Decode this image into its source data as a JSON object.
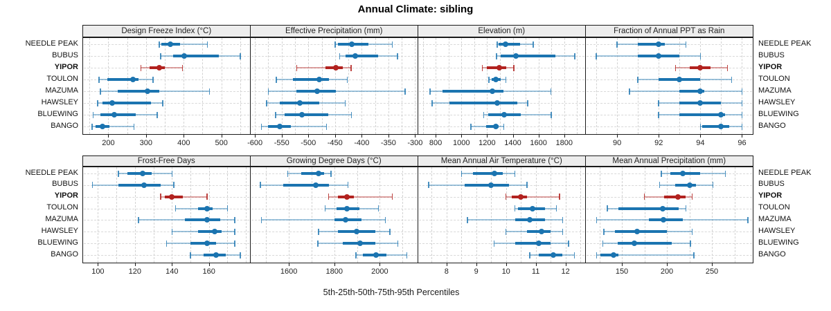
{
  "title": "Annual Climate: sibling",
  "axis_caption": "5th-25th-50th-75th-95th Percentiles",
  "colors": {
    "series": "#1b74b0",
    "series_light": "rgba(27,116,176,0.42)",
    "series_cap": "rgba(27,116,176,0.80)",
    "highlight": "#b2221f",
    "highlight_light": "rgba(178,34,31,0.42)",
    "highlight_cap": "rgba(178,34,31,0.85)",
    "grid": "#d2d2d2",
    "strip_bg": "#ededed",
    "border": "#1a1a1a"
  },
  "chart_data": {
    "type": "dotplot-intervals",
    "percentiles": [
      "5th",
      "25th",
      "50th",
      "75th",
      "95th"
    ],
    "sites": [
      "NEEDLE PEAK",
      "BUBUS",
      "YIPOR",
      "TOULON",
      "MAZUMA",
      "HAWSLEY",
      "BLUEWING",
      "BANGO"
    ],
    "highlight_site": "YIPOR",
    "legend": "none",
    "grid": "dashed, vertical at half-tick steps and horizontal per site row",
    "panels": [
      {
        "title": "Design Freeze Index (°C)",
        "row": 0,
        "col": 0,
        "xlim": [
          133,
          575
        ],
        "ticks": [
          200,
          300,
          400,
          500
        ],
        "values": [
          [
            335,
            340,
            365,
            390,
            463
          ],
          [
            339,
            371,
            402,
            493,
            550
          ],
          [
            286,
            310,
            335,
            350,
            397
          ],
          [
            175,
            198,
            265,
            280,
            319
          ],
          [
            179,
            224,
            304,
            335,
            468
          ],
          [
            172,
            185,
            211,
            313,
            344
          ],
          [
            160,
            179,
            216,
            273,
            330
          ],
          [
            157,
            166,
            185,
            203,
            268
          ]
        ]
      },
      {
        "title": "Effective Precipitation (mm)",
        "row": 0,
        "col": 1,
        "xlim": [
          -608,
          -296
        ],
        "ticks": [
          -600,
          -550,
          -500,
          -450,
          -400,
          -350,
          -300
        ],
        "values": [
          [
            -450,
            -444,
            -419,
            -388,
            -343
          ],
          [
            -441,
            -430,
            -412,
            -369,
            -333
          ],
          [
            -522,
            -468,
            -448,
            -436,
            -420
          ],
          [
            -560,
            -529,
            -479,
            -461,
            -427
          ],
          [
            -575,
            -522,
            -484,
            -448,
            -319
          ],
          [
            -578,
            -553,
            -516,
            -480,
            -431
          ],
          [
            -561,
            -545,
            -512,
            -463,
            -419
          ],
          [
            -588,
            -575,
            -554,
            -533,
            -466
          ]
        ]
      },
      {
        "title": "Elevation (m)",
        "row": 0,
        "col": 2,
        "xlim": [
          665,
          1960
        ],
        "ticks": [
          800,
          1000,
          1200,
          1400,
          1600,
          1800
        ],
        "values": [
          [
            1278,
            1291,
            1344,
            1455,
            1558
          ],
          [
            1273,
            1304,
            1423,
            1729,
            1883
          ],
          [
            1163,
            1198,
            1296,
            1349,
            1407
          ],
          [
            1213,
            1234,
            1266,
            1304,
            1345
          ],
          [
            756,
            853,
            1240,
            1330,
            1697
          ],
          [
            773,
            906,
            1278,
            1437,
            1517
          ],
          [
            1175,
            1207,
            1335,
            1464,
            1700
          ],
          [
            1075,
            1190,
            1266,
            1291,
            1331
          ]
        ]
      },
      {
        "title": "Fraction of Annual PPT as Rain",
        "row": 0,
        "col": 3,
        "xlim": [
          88.5,
          96.5
        ],
        "ticks": [
          90,
          92,
          94,
          96
        ],
        "values": [
          [
            90.0,
            91.0,
            92.0,
            92.3,
            93.3
          ],
          [
            89.0,
            91.0,
            92.0,
            93.0,
            94.0
          ],
          [
            92.8,
            93.5,
            94.0,
            94.5,
            95.3
          ],
          [
            91.0,
            92.0,
            93.0,
            94.0,
            95.5
          ],
          [
            90.6,
            93.0,
            94.0,
            94.2,
            96.0
          ],
          [
            92.0,
            93.0,
            94.0,
            95.0,
            96.0
          ],
          [
            92.0,
            93.0,
            95.0,
            95.2,
            96.0
          ],
          [
            94.0,
            94.1,
            95.0,
            95.4,
            96.0
          ]
        ]
      },
      {
        "title": "Frost-Free Days",
        "row": 1,
        "col": 0,
        "xlim": [
          92,
          182
        ],
        "ticks": [
          100,
          120,
          140,
          160
        ],
        "values": [
          [
            111,
            116,
            124,
            129,
            140
          ],
          [
            97,
            111,
            125,
            134,
            141
          ],
          [
            134,
            136,
            140,
            146,
            159
          ],
          [
            142,
            154,
            159,
            162,
            170
          ],
          [
            122,
            147,
            159,
            166,
            174
          ],
          [
            140,
            154,
            163,
            167,
            174
          ],
          [
            137,
            150,
            159,
            164,
            174
          ],
          [
            150,
            157,
            164,
            169,
            177
          ]
        ]
      },
      {
        "title": "Growing Degree Days (°C)",
        "row": 1,
        "col": 1,
        "xlim": [
          1432,
          2165
        ],
        "ticks": [
          1600,
          1800,
          2000
        ],
        "values": [
          [
            1595,
            1655,
            1730,
            1755,
            1785
          ],
          [
            1475,
            1575,
            1718,
            1777,
            1860
          ],
          [
            1775,
            1815,
            1855,
            1885,
            2055
          ],
          [
            1760,
            1810,
            1855,
            1910,
            1995
          ],
          [
            1480,
            1800,
            1850,
            1920,
            2025
          ],
          [
            1730,
            1815,
            1898,
            1980,
            2045
          ],
          [
            1727,
            1838,
            1915,
            1982,
            2080
          ],
          [
            1895,
            1925,
            1985,
            2030,
            2120
          ]
        ]
      },
      {
        "title": "Mean Annual Air Temperature (°C)",
        "row": 1,
        "col": 2,
        "xlim": [
          7.05,
          12.65
        ],
        "ticks": [
          8,
          9,
          10,
          11,
          12
        ],
        "values": [
          [
            8.5,
            8.9,
            9.6,
            9.9,
            10.3
          ],
          [
            7.4,
            8.6,
            9.5,
            10.1,
            10.7
          ],
          [
            10.0,
            10.2,
            10.5,
            10.7,
            11.8
          ],
          [
            10.3,
            10.4,
            10.9,
            11.3,
            11.7
          ],
          [
            8.7,
            10.3,
            10.8,
            11.3,
            11.9
          ],
          [
            10.0,
            10.7,
            11.2,
            11.5,
            11.9
          ],
          [
            9.6,
            10.3,
            11.1,
            11.5,
            12.1
          ],
          [
            10.8,
            11.1,
            11.6,
            11.9,
            12.3
          ]
        ]
      },
      {
        "title": "Mean Annual Precipitation (mm)",
        "row": 1,
        "col": 3,
        "xlim": [
          110,
          295
        ],
        "ticks": [
          150,
          200,
          250
        ],
        "values": [
          [
            194,
            204,
            218,
            237,
            265
          ],
          [
            192,
            209,
            225,
            232,
            251
          ],
          [
            175,
            197,
            212,
            221,
            228
          ],
          [
            134,
            146,
            195,
            213,
            221
          ],
          [
            122,
            180,
            196,
            218,
            290
          ],
          [
            130,
            142,
            167,
            200,
            228
          ],
          [
            129,
            145,
            164,
            205,
            226
          ],
          [
            122,
            126,
            141,
            146,
            230
          ]
        ]
      }
    ]
  }
}
